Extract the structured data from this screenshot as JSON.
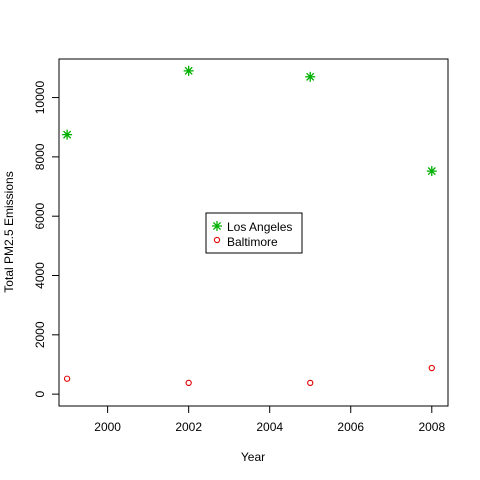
{
  "chart_data": {
    "type": "scatter",
    "title": "",
    "xlabel": "Year",
    "ylabel": "Total PM2.5 Emissions",
    "xlim": [
      1998.8,
      2008.4
    ],
    "ylim": [
      -400,
      11300
    ],
    "xticks": [
      2000,
      2002,
      2004,
      2006,
      2008
    ],
    "yticks": [
      0,
      2000,
      4000,
      6000,
      8000,
      10000
    ],
    "grid": false,
    "legend_position": "center",
    "series": [
      {
        "name": "Los Angeles",
        "marker": "asterisk",
        "color": "#00b000",
        "x": [
          1999,
          2002,
          2005,
          2008
        ],
        "y": [
          8750,
          10900,
          10700,
          7520
        ]
      },
      {
        "name": "Baltimore",
        "marker": "open-circle",
        "color": "#e00000",
        "x": [
          1999,
          2002,
          2005,
          2008
        ],
        "y": [
          520,
          380,
          380,
          880
        ]
      }
    ]
  }
}
